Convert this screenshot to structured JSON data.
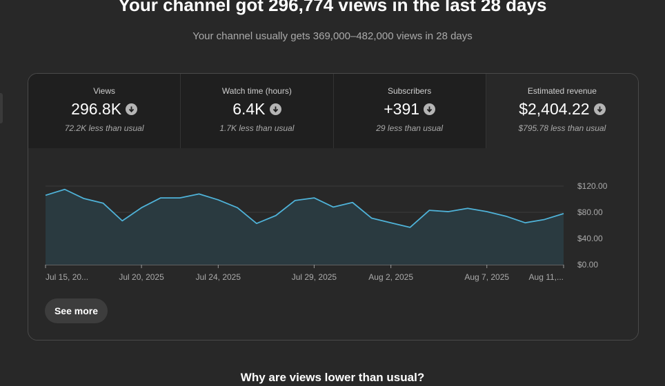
{
  "headline": "Your channel got 296,774 views in the last 28 days",
  "subline": "Your channel usually gets 369,000–482,000 views in 28 days",
  "metrics": [
    {
      "label": "Views",
      "value": "296.8K",
      "note": "72.2K less than usual",
      "icon": "arrow-down-circle-icon"
    },
    {
      "label": "Watch time (hours)",
      "value": "6.4K",
      "note": "1.7K less than usual",
      "icon": "arrow-down-circle-icon"
    },
    {
      "label": "Subscribers",
      "value": "+391",
      "note": "29 less than usual",
      "icon": "arrow-down-circle-icon"
    },
    {
      "label": "Estimated revenue",
      "value": "$2,404.22",
      "note": "$795.78 less than usual",
      "icon": "arrow-down-circle-icon"
    }
  ],
  "see_more_label": "See more",
  "why_heading": "Why are views lower than usual?",
  "colors": {
    "line": "#4fb3d9",
    "area": "#2a3a40",
    "background": "#282828",
    "selected_metric_bg": "#282828",
    "metric_bg": "#1f1f1f"
  },
  "chart_data": {
    "type": "area",
    "series": [
      {
        "values": [
          106,
          115,
          101,
          94,
          67,
          87,
          102,
          102,
          108,
          99,
          87,
          63,
          75,
          98,
          102,
          88,
          95,
          71,
          64,
          57,
          83,
          81,
          86,
          81,
          74,
          64,
          69,
          78
        ]
      }
    ],
    "x_tick_labels": [
      "Jul 15, 20...",
      "Jul 20, 2025",
      "Jul 24, 2025",
      "Jul 29, 2025",
      "Aug 2, 2025",
      "Aug 7, 2025",
      "Aug 11,..."
    ],
    "x_tick_index": [
      0,
      5,
      9,
      14,
      18,
      23,
      27
    ],
    "y_tick_labels": [
      "$120.00",
      "$80.00",
      "$40.00",
      "$0.00"
    ],
    "y_tick_values": [
      120,
      80,
      40,
      0
    ],
    "ylim": [
      0,
      120
    ],
    "grid": true,
    "y_axis_position": "right"
  }
}
